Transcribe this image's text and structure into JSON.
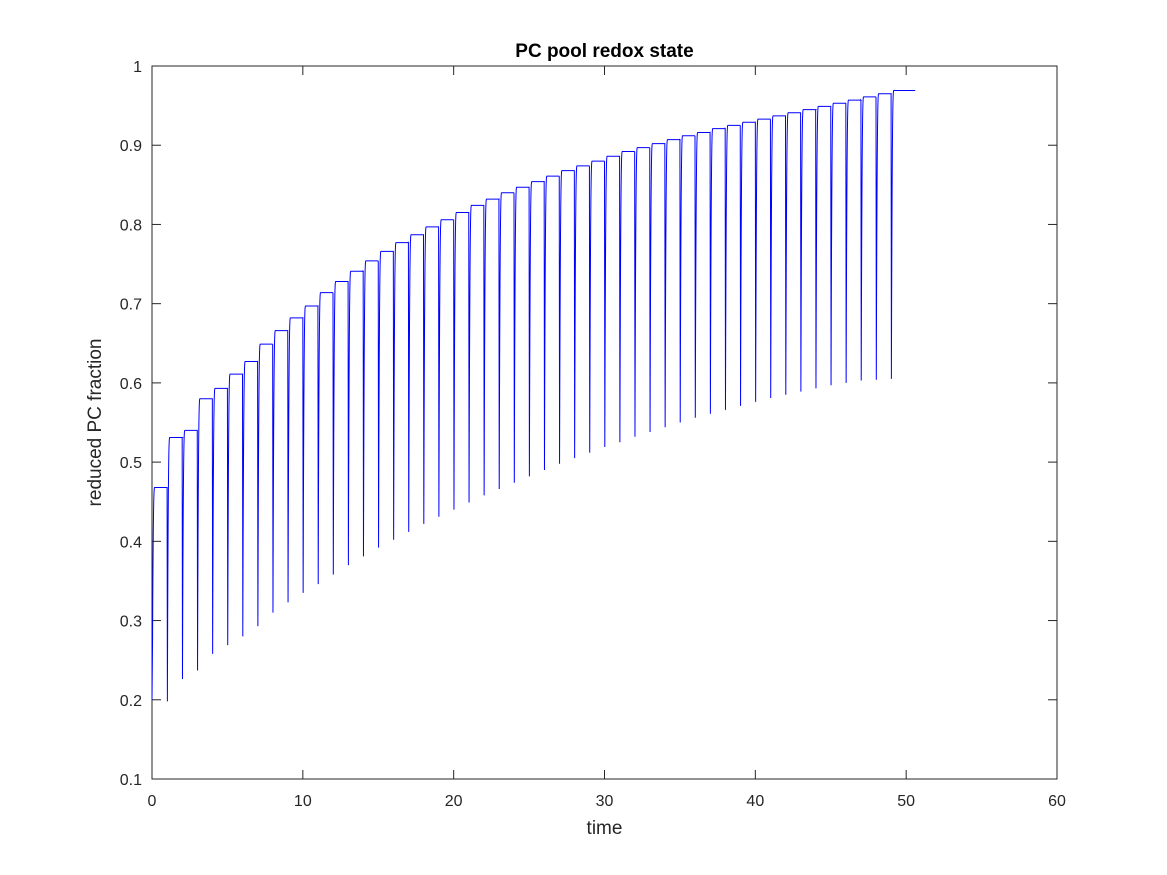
{
  "chart_data": {
    "type": "line",
    "title": "PC pool redox state",
    "xlabel": "time",
    "ylabel": "reduced PC fraction",
    "xlim": [
      0,
      60
    ],
    "ylim": [
      0.1,
      1
    ],
    "xticks": [
      "0",
      "10",
      "20",
      "30",
      "40",
      "50",
      "60"
    ],
    "yticks": [
      "0.1",
      "0.2",
      "0.3",
      "0.4",
      "0.5",
      "0.6",
      "0.7",
      "0.8",
      "0.9",
      "1"
    ],
    "grid": false,
    "line_color": "#0000ff",
    "flash_period": 1,
    "flash_times": [
      0,
      1,
      2,
      3,
      4,
      5,
      6,
      7,
      8,
      9,
      10,
      11,
      12,
      13,
      14,
      15,
      16,
      17,
      18,
      19,
      20,
      21,
      22,
      23,
      24,
      25,
      26,
      27,
      28,
      29,
      30,
      31,
      32,
      33,
      34,
      35,
      36,
      37,
      38,
      39,
      40,
      41,
      42,
      43,
      44,
      45,
      46,
      47,
      48,
      49
    ],
    "plateau_values": [
      0.468,
      0.531,
      0.54,
      0.58,
      0.593,
      0.611,
      0.627,
      0.649,
      0.666,
      0.682,
      0.697,
      0.714,
      0.728,
      0.741,
      0.754,
      0.766,
      0.777,
      0.787,
      0.797,
      0.806,
      0.815,
      0.824,
      0.832,
      0.84,
      0.847,
      0.854,
      0.861,
      0.868,
      0.874,
      0.88,
      0.886,
      0.892,
      0.897,
      0.902,
      0.907,
      0.912,
      0.916,
      0.921,
      0.925,
      0.929,
      0.933,
      0.937,
      0.941,
      0.945,
      0.949,
      0.953,
      0.957,
      0.961,
      0.965,
      0.969
    ],
    "minimum_values": [
      0.2,
      0.198,
      0.226,
      0.237,
      0.258,
      0.269,
      0.28,
      0.293,
      0.31,
      0.323,
      0.335,
      0.346,
      0.358,
      0.37,
      0.381,
      0.392,
      0.402,
      0.412,
      0.422,
      0.431,
      0.44,
      0.449,
      0.458,
      0.466,
      0.474,
      0.482,
      0.49,
      0.498,
      0.505,
      0.512,
      0.519,
      0.525,
      0.532,
      0.538,
      0.544,
      0.55,
      0.556,
      0.561,
      0.566,
      0.571,
      0.576,
      0.581,
      0.585,
      0.589,
      0.593,
      0.597,
      0.6,
      0.603,
      0.604,
      0.605
    ],
    "end_time": 50.6
  }
}
